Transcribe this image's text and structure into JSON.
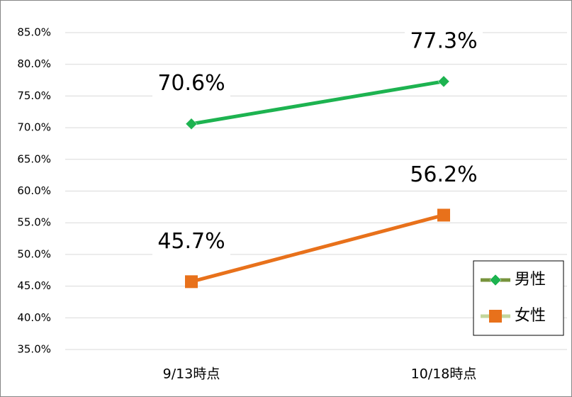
{
  "chart_data": {
    "type": "line",
    "categories": [
      "9/13時点",
      "10/18時点"
    ],
    "series": [
      {
        "name": "男性",
        "color": "#1db350",
        "legend_line_color": "#77933c",
        "marker": "diamond",
        "values": [
          70.6,
          77.3
        ],
        "value_labels": [
          "70.6%",
          "77.3%"
        ]
      },
      {
        "name": "女性",
        "color": "#e8711b",
        "legend_line_color": "#c3d69b",
        "marker": "square",
        "values": [
          45.7,
          56.2
        ],
        "value_labels": [
          "45.7%",
          "56.2%"
        ]
      }
    ],
    "ylim": [
      35,
      85
    ],
    "yticks": [
      {
        "value": 35,
        "label": "35.0%"
      },
      {
        "value": 40,
        "label": "40.0%"
      },
      {
        "value": 45,
        "label": "45.0%"
      },
      {
        "value": 50,
        "label": "50.0%"
      },
      {
        "value": 55,
        "label": "55.0%"
      },
      {
        "value": 60,
        "label": "60.0%"
      },
      {
        "value": 65,
        "label": "65.0%"
      },
      {
        "value": 70,
        "label": "70.0%"
      },
      {
        "value": 75,
        "label": "75.0%"
      },
      {
        "value": 80,
        "label": "80.0%"
      },
      {
        "value": 85,
        "label": "85.0%"
      }
    ],
    "grid": true,
    "legend": "right"
  }
}
